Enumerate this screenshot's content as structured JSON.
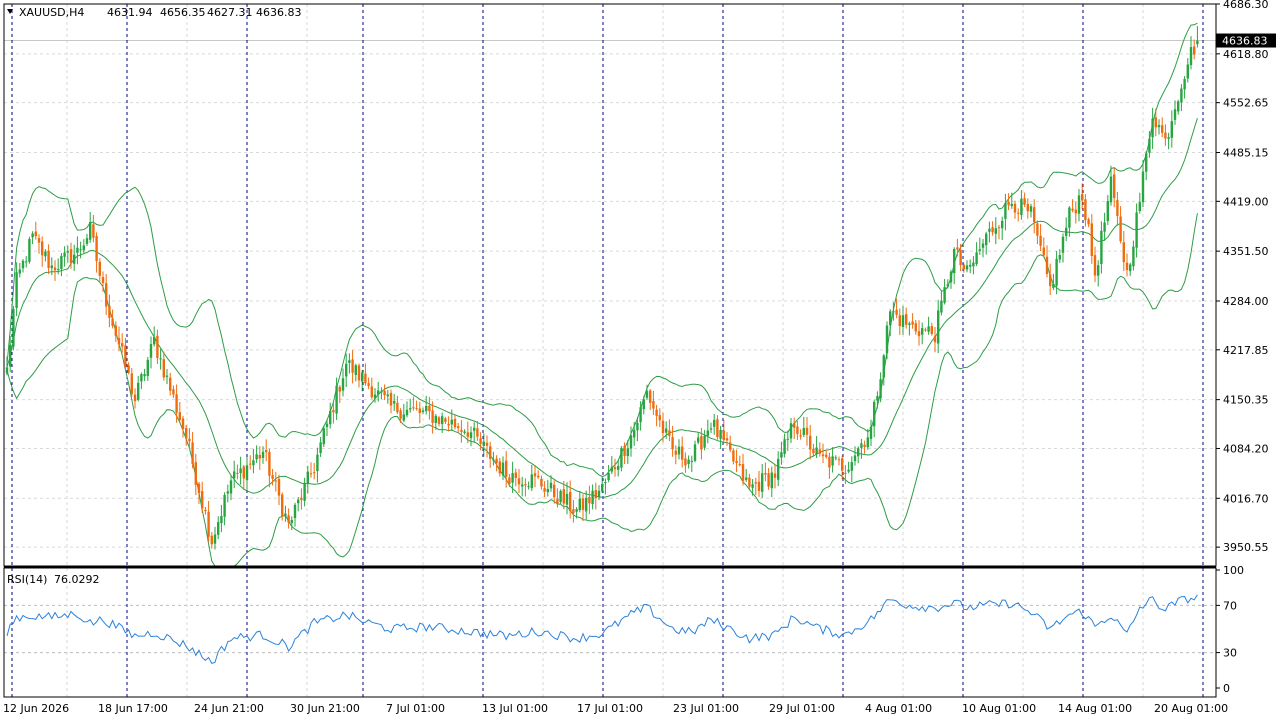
{
  "header": {
    "symbol": "XAUUSD,H4",
    "open": "4631.94",
    "high": "4656.35",
    "low": "4627.31",
    "close": "4636.83"
  },
  "rsi_header": {
    "label": "RSI(14)",
    "value": "76.0292"
  },
  "colors": {
    "bull": "#26a541",
    "bear": "#ef6c0e",
    "bands": "#2e9d46",
    "rsi": "#2b82d9",
    "grid": "#d9d9d9",
    "separator": "#00008b",
    "price_tag_bg": "#000000"
  },
  "chart_data": [
    {
      "type": "candlestick",
      "title": "XAUUSD,H4",
      "indicator": "Bollinger Bands",
      "ylim": [
        3925,
        4686.3
      ],
      "y_ticks": [
        "4686.30",
        "4618.80",
        "4552.65",
        "4485.15",
        "4419.00",
        "4351.50",
        "4284.00",
        "4217.85",
        "4150.35",
        "4084.20",
        "4016.70",
        "3950.55"
      ],
      "x_ticks": [
        "12 Jun 2026",
        "18 Jun 17:00",
        "24 Jun 21:00",
        "30 Jun 21:00",
        "7 Jul 01:00",
        "13 Jul 01:00",
        "17 Jul 01:00",
        "23 Jul 01:00",
        "29 Jul 01:00",
        "4 Aug 01:00",
        "10 Aug 01:00",
        "14 Aug 01:00",
        "20 Aug 01:00"
      ],
      "current_price": "4636.83",
      "anchors": [
        [
          0,
          4190
        ],
        [
          3,
          4310
        ],
        [
          8,
          4370
        ],
        [
          14,
          4330
        ],
        [
          22,
          4350
        ],
        [
          26,
          4380
        ],
        [
          30,
          4300
        ],
        [
          40,
          4150
        ],
        [
          46,
          4230
        ],
        [
          56,
          4100
        ],
        [
          64,
          3960
        ],
        [
          70,
          4040
        ],
        [
          80,
          4080
        ],
        [
          88,
          3980
        ],
        [
          96,
          4060
        ],
        [
          106,
          4200
        ],
        [
          112,
          4175
        ],
        [
          120,
          4140
        ],
        [
          132,
          4130
        ],
        [
          144,
          4110
        ],
        [
          156,
          4050
        ],
        [
          166,
          4040
        ],
        [
          178,
          4000
        ],
        [
          186,
          4030
        ],
        [
          196,
          4110
        ],
        [
          200,
          4160
        ],
        [
          208,
          4080
        ],
        [
          214,
          4070
        ],
        [
          220,
          4120
        ],
        [
          232,
          4030
        ],
        [
          240,
          4050
        ],
        [
          246,
          4120
        ],
        [
          254,
          4070
        ],
        [
          262,
          4060
        ],
        [
          270,
          4110
        ],
        [
          276,
          4270
        ],
        [
          282,
          4250
        ],
        [
          290,
          4240
        ],
        [
          296,
          4350
        ],
        [
          300,
          4320
        ],
        [
          306,
          4370
        ],
        [
          314,
          4420
        ],
        [
          320,
          4400
        ],
        [
          326,
          4300
        ],
        [
          332,
          4400
        ],
        [
          336,
          4430
        ],
        [
          340,
          4320
        ],
        [
          345,
          4440
        ],
        [
          350,
          4320
        ],
        [
          354,
          4420
        ],
        [
          358,
          4540
        ],
        [
          362,
          4500
        ],
        [
          365,
          4550
        ],
        [
          369,
          4610
        ],
        [
          372,
          4637
        ]
      ]
    },
    {
      "type": "line",
      "title": "RSI(14) 76.0292",
      "ylim": [
        0,
        100
      ],
      "y_ticks": [
        "100",
        "70",
        "30",
        "0"
      ],
      "anchors": [
        [
          0,
          48
        ],
        [
          3,
          60
        ],
        [
          8,
          61
        ],
        [
          14,
          60
        ],
        [
          22,
          63
        ],
        [
          26,
          55
        ],
        [
          30,
          58
        ],
        [
          40,
          44
        ],
        [
          46,
          47
        ],
        [
          56,
          36
        ],
        [
          64,
          22
        ],
        [
          70,
          42
        ],
        [
          80,
          45
        ],
        [
          88,
          35
        ],
        [
          96,
          55
        ],
        [
          106,
          62
        ],
        [
          112,
          56
        ],
        [
          120,
          50
        ],
        [
          132,
          52
        ],
        [
          144,
          48
        ],
        [
          156,
          44
        ],
        [
          166,
          48
        ],
        [
          178,
          42
        ],
        [
          186,
          46
        ],
        [
          196,
          64
        ],
        [
          200,
          68
        ],
        [
          208,
          50
        ],
        [
          214,
          47
        ],
        [
          220,
          58
        ],
        [
          232,
          42
        ],
        [
          240,
          45
        ],
        [
          246,
          60
        ],
        [
          254,
          50
        ],
        [
          262,
          45
        ],
        [
          270,
          58
        ],
        [
          276,
          75
        ],
        [
          282,
          70
        ],
        [
          290,
          68
        ],
        [
          296,
          72
        ],
        [
          300,
          68
        ],
        [
          306,
          70
        ],
        [
          314,
          72
        ],
        [
          320,
          64
        ],
        [
          326,
          50
        ],
        [
          332,
          62
        ],
        [
          336,
          65
        ],
        [
          340,
          52
        ],
        [
          345,
          62
        ],
        [
          350,
          45
        ],
        [
          354,
          68
        ],
        [
          358,
          75
        ],
        [
          362,
          66
        ],
        [
          365,
          72
        ],
        [
          369,
          76
        ],
        [
          372,
          76
        ]
      ]
    }
  ]
}
